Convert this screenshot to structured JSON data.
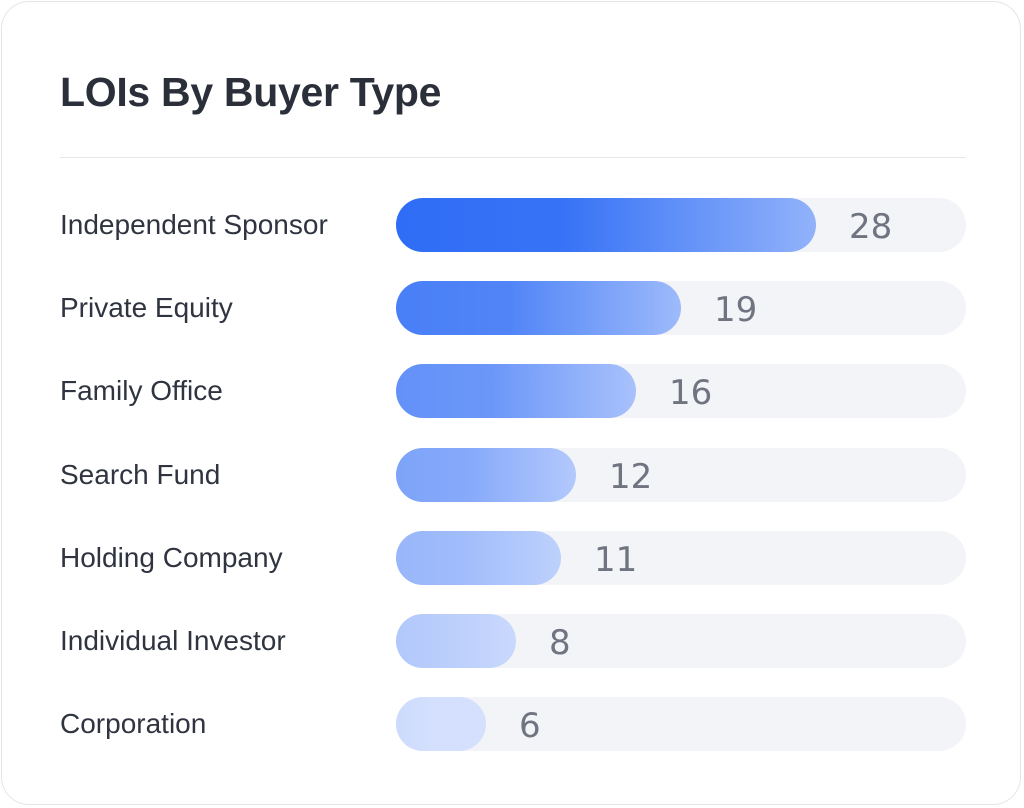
{
  "chart_data": {
    "type": "bar",
    "orientation": "horizontal",
    "title": "LOIs By Buyer Type",
    "categories": [
      "Independent Sponsor",
      "Private Equity",
      "Family Office",
      "Search Fund",
      "Holding Company",
      "Individual Investor",
      "Corporation"
    ],
    "values": [
      28,
      19,
      16,
      12,
      11,
      8,
      6
    ],
    "value_labels": [
      "28",
      "19",
      "16",
      "12",
      "11",
      "8",
      "6"
    ],
    "xlim": [
      0,
      38
    ],
    "grid": false,
    "legend": "none",
    "colors": {
      "bar_strong": "#2f6df6",
      "bar_light": "#d4e0fd",
      "track": "#f3f4f7"
    }
  }
}
